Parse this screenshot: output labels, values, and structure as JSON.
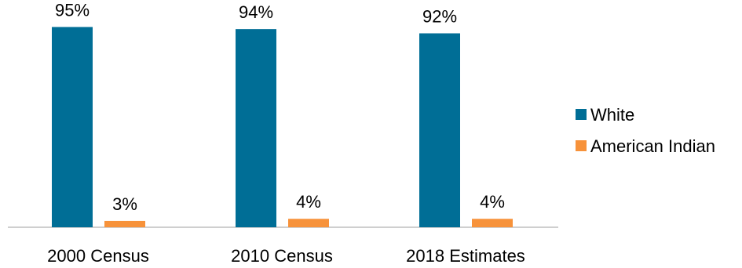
{
  "chart_data": {
    "type": "bar",
    "title": "",
    "xlabel": "",
    "ylabel": "",
    "categories": [
      "2000 Census",
      "2010 Census",
      "2018 Estimates"
    ],
    "ylim": [
      0,
      100
    ],
    "grid": false,
    "legend_position": "right",
    "series": [
      {
        "name": "White",
        "color": "#006E96",
        "values": [
          95,
          94,
          92
        ],
        "labels": [
          "95%",
          "94%",
          "92%"
        ]
      },
      {
        "name": "American Indian",
        "color": "#F7923A",
        "values": [
          3,
          4,
          4
        ],
        "labels": [
          "3%",
          "4%",
          "4%"
        ]
      }
    ]
  }
}
